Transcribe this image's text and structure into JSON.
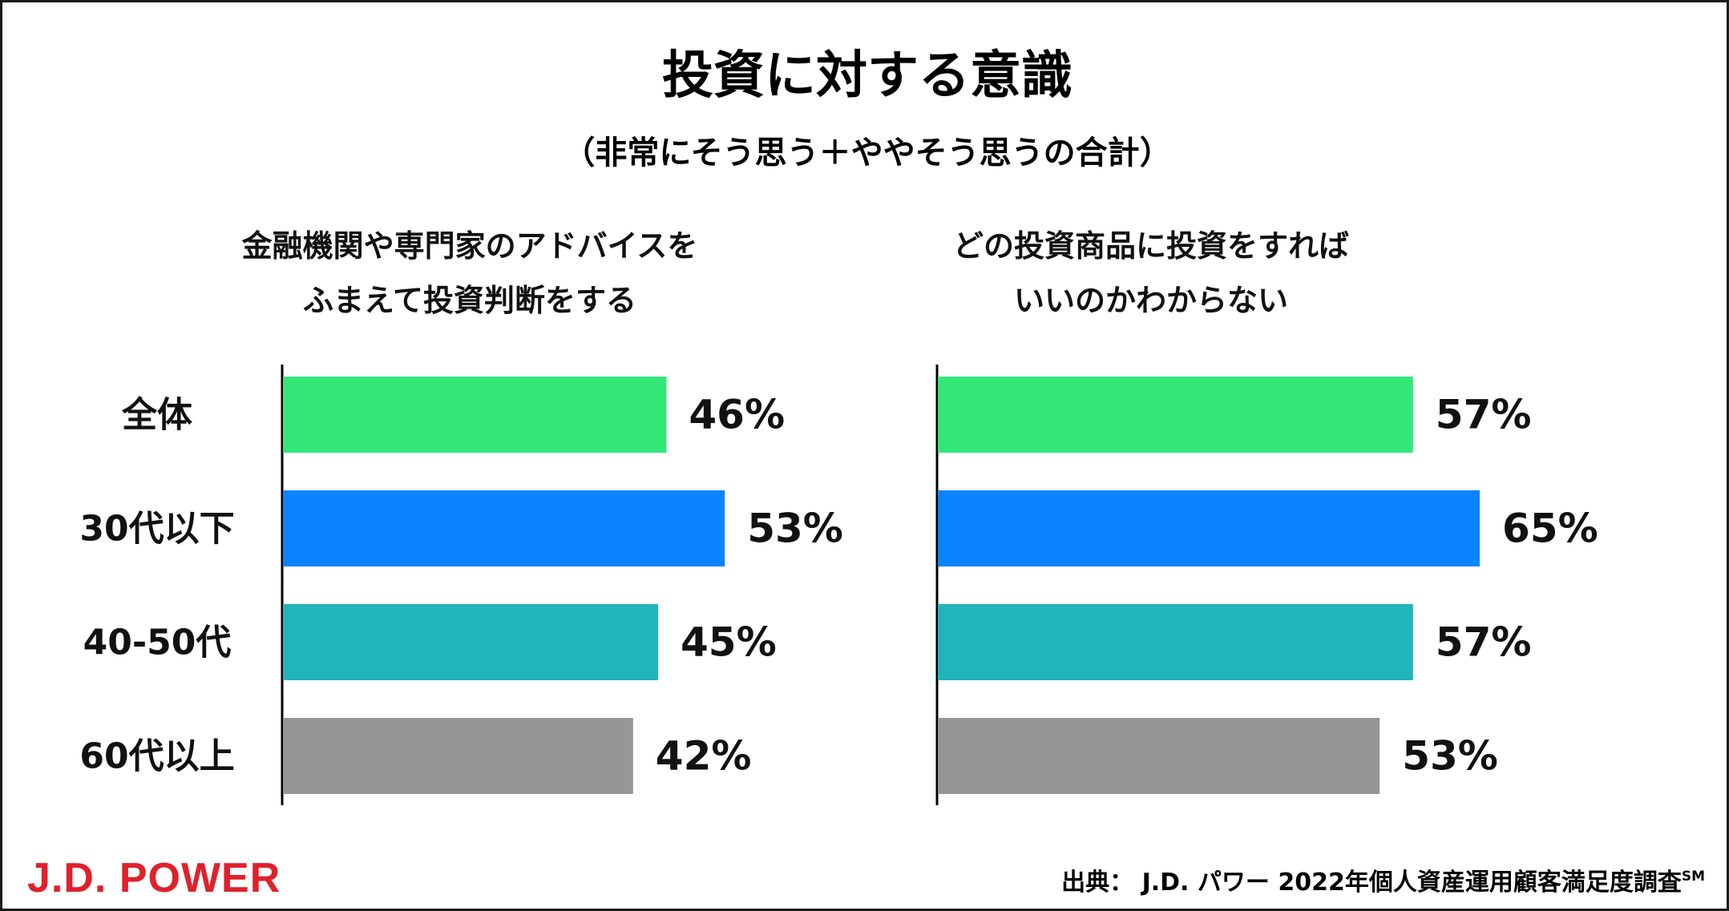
{
  "colors": {
    "all": "#33e67a",
    "age30": "#0a84ff",
    "age40_50": "#20b5bb",
    "age60": "#969696",
    "logo_red": "#e0212b"
  },
  "chart_data": {
    "type": "bar",
    "orientation": "horizontal",
    "title": "投資に対する意識",
    "subtitle": "（非常にそう思う＋ややそう思うの合計）",
    "categories": [
      "全体",
      "30代以下",
      "40-50代",
      "60代以上"
    ],
    "category_colors": [
      "#33e67a",
      "#0a84ff",
      "#20b5bb",
      "#969696"
    ],
    "xlim": [
      0,
      100
    ],
    "series": [
      {
        "name_lines": [
          "金融機関や専門家のアドバイスを",
          "ふまえて投資判断をする"
        ],
        "values": [
          46,
          53,
          45,
          42
        ],
        "labels": [
          "46%",
          "53%",
          "45%",
          "42%"
        ]
      },
      {
        "name_lines": [
          "どの投資商品に投資をすれば",
          "いいのかわからない"
        ],
        "values": [
          57,
          65,
          57,
          53
        ],
        "labels": [
          "57%",
          "65%",
          "57%",
          "53%"
        ]
      }
    ]
  },
  "footer": {
    "logo": "J.D. POWER",
    "source_text": "出典：  J.D. パワー 2022年個人資産運用顧客満足度調査",
    "source_sup": "SM"
  }
}
